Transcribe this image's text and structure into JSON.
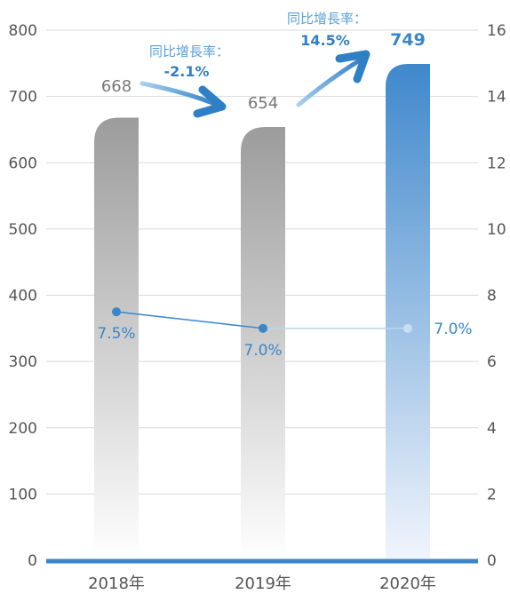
{
  "chart_data": {
    "type": "bar",
    "categories": [
      "2018年",
      "2019年",
      "2020年"
    ],
    "series": [
      {
        "values": [
          668,
          654,
          749
        ],
        "axis": "left",
        "data_labels": [
          "668",
          "654",
          "749"
        ]
      },
      {
        "type": "line",
        "values": [
          7.5,
          7.0,
          7.0
        ],
        "axis": "right",
        "data_labels": [
          "7.5%",
          "7.0%",
          "7.0%"
        ]
      }
    ],
    "ylim": [
      0,
      800
    ],
    "y_ticks": [
      "0",
      "100",
      "200",
      "300",
      "400",
      "500",
      "600",
      "700",
      "800"
    ],
    "y2lim": [
      0,
      16
    ],
    "y2_ticks": [
      "0",
      "2",
      "4",
      "6",
      "8",
      "10",
      "12",
      "14",
      "16"
    ],
    "grid": true,
    "annotations": [
      {
        "label": "同比增長率：",
        "value": "-2.1%"
      },
      {
        "label": "同比增長率：",
        "value": "14.5%"
      }
    ],
    "colors": {
      "grey_bar": "#9e9e9e",
      "blue_bar": "#3f88cc",
      "line": "#3a86c8",
      "axis": "#3a86c8",
      "grid": "#d9d9d9"
    }
  }
}
